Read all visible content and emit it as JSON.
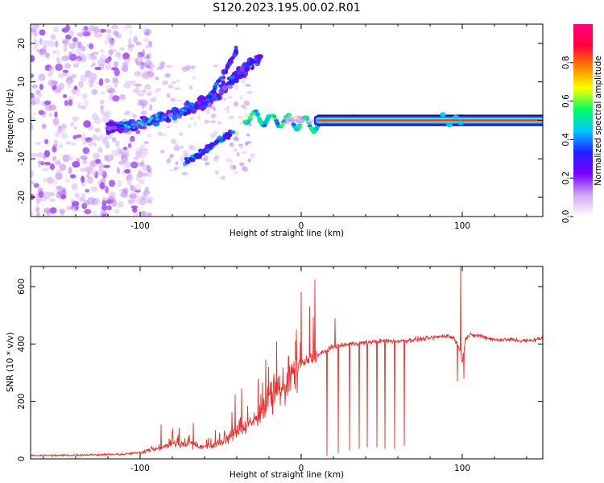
{
  "title": "S120.2023.195.00.02.R01",
  "chart_data": [
    {
      "type": "heatmap",
      "xlabel": "Height of straight line (km)",
      "ylabel": "Frequency (Hz)",
      "xlim": [
        -168,
        150
      ],
      "ylim": [
        -25,
        25
      ],
      "x_ticks": [
        -100,
        0,
        100
      ],
      "y_ticks": [
        -20,
        -10,
        0,
        10,
        20
      ],
      "grid": false,
      "colorbar": {
        "label": "Normalized spectral amplitude",
        "range": [
          0,
          1
        ],
        "ticks": [
          0.0,
          0.2,
          0.4,
          0.6,
          0.8
        ],
        "stops": [
          "#ffffff",
          "#d0a8f0",
          "#7a00ff",
          "#2020ff",
          "#00c8ff",
          "#00ff60",
          "#ffff00",
          "#ff8000",
          "#ff0040",
          "#ff0080"
        ]
      },
      "features": [
        {
          "name": "central band",
          "x": [
            10,
            150
          ],
          "y": 0,
          "amplitude": 0.95
        },
        {
          "name": "upper branch",
          "x": [
            -120,
            -25
          ],
          "y_start": -2,
          "y_end": 18,
          "amplitude": 0.35
        },
        {
          "name": "lower branch",
          "x": [
            -72,
            -50
          ],
          "y_start": -11,
          "y_end": -5,
          "amplitude": 0.4
        },
        {
          "name": "left noise",
          "x": [
            -168,
            -100
          ],
          "y": [
            -25,
            25
          ],
          "amplitude": 0.15
        }
      ]
    },
    {
      "type": "line",
      "xlabel": "Height of straight line (km)",
      "ylabel": "SNR (10 * v/v)",
      "xlim": [
        -168,
        150
      ],
      "ylim": [
        0,
        670
      ],
      "x_ticks": [
        -100,
        0,
        100
      ],
      "y_ticks": [
        0,
        200,
        400,
        600
      ],
      "grid": false,
      "color": "#e8312f",
      "x": [
        -168,
        -150,
        -130,
        -110,
        -100,
        -90,
        -80,
        -70,
        -60,
        -50,
        -40,
        -30,
        -20,
        -10,
        0,
        10,
        20,
        30,
        40,
        50,
        60,
        70,
        80,
        90,
        95,
        98,
        100,
        102,
        105,
        110,
        120,
        130,
        140,
        150
      ],
      "values": [
        12,
        12,
        14,
        16,
        22,
        35,
        50,
        55,
        40,
        55,
        95,
        130,
        200,
        260,
        330,
        360,
        390,
        400,
        405,
        410,
        410,
        415,
        420,
        430,
        420,
        390,
        340,
        420,
        430,
        430,
        415,
        415,
        410,
        420
      ],
      "spikes": [
        {
          "x": -87,
          "value": 120
        },
        {
          "x": -67,
          "value": 125
        },
        {
          "x": -41,
          "value": 225
        },
        {
          "x": -37,
          "value": 245
        },
        {
          "x": -3,
          "value": 450
        },
        {
          "x": 21,
          "value": 490
        },
        {
          "x": 99,
          "value": 670
        }
      ],
      "dropouts": [
        {
          "x": 16,
          "value": 10
        },
        {
          "x": 23,
          "value": 20
        },
        {
          "x": 30,
          "value": 30
        },
        {
          "x": 36,
          "value": 35
        },
        {
          "x": 41,
          "value": 40
        },
        {
          "x": 47,
          "value": 40
        },
        {
          "x": 52,
          "value": 35
        },
        {
          "x": 58,
          "value": 35
        },
        {
          "x": 64,
          "value": 45
        },
        {
          "x": 97,
          "value": 270
        },
        {
          "x": 101,
          "value": 280
        }
      ]
    }
  ]
}
